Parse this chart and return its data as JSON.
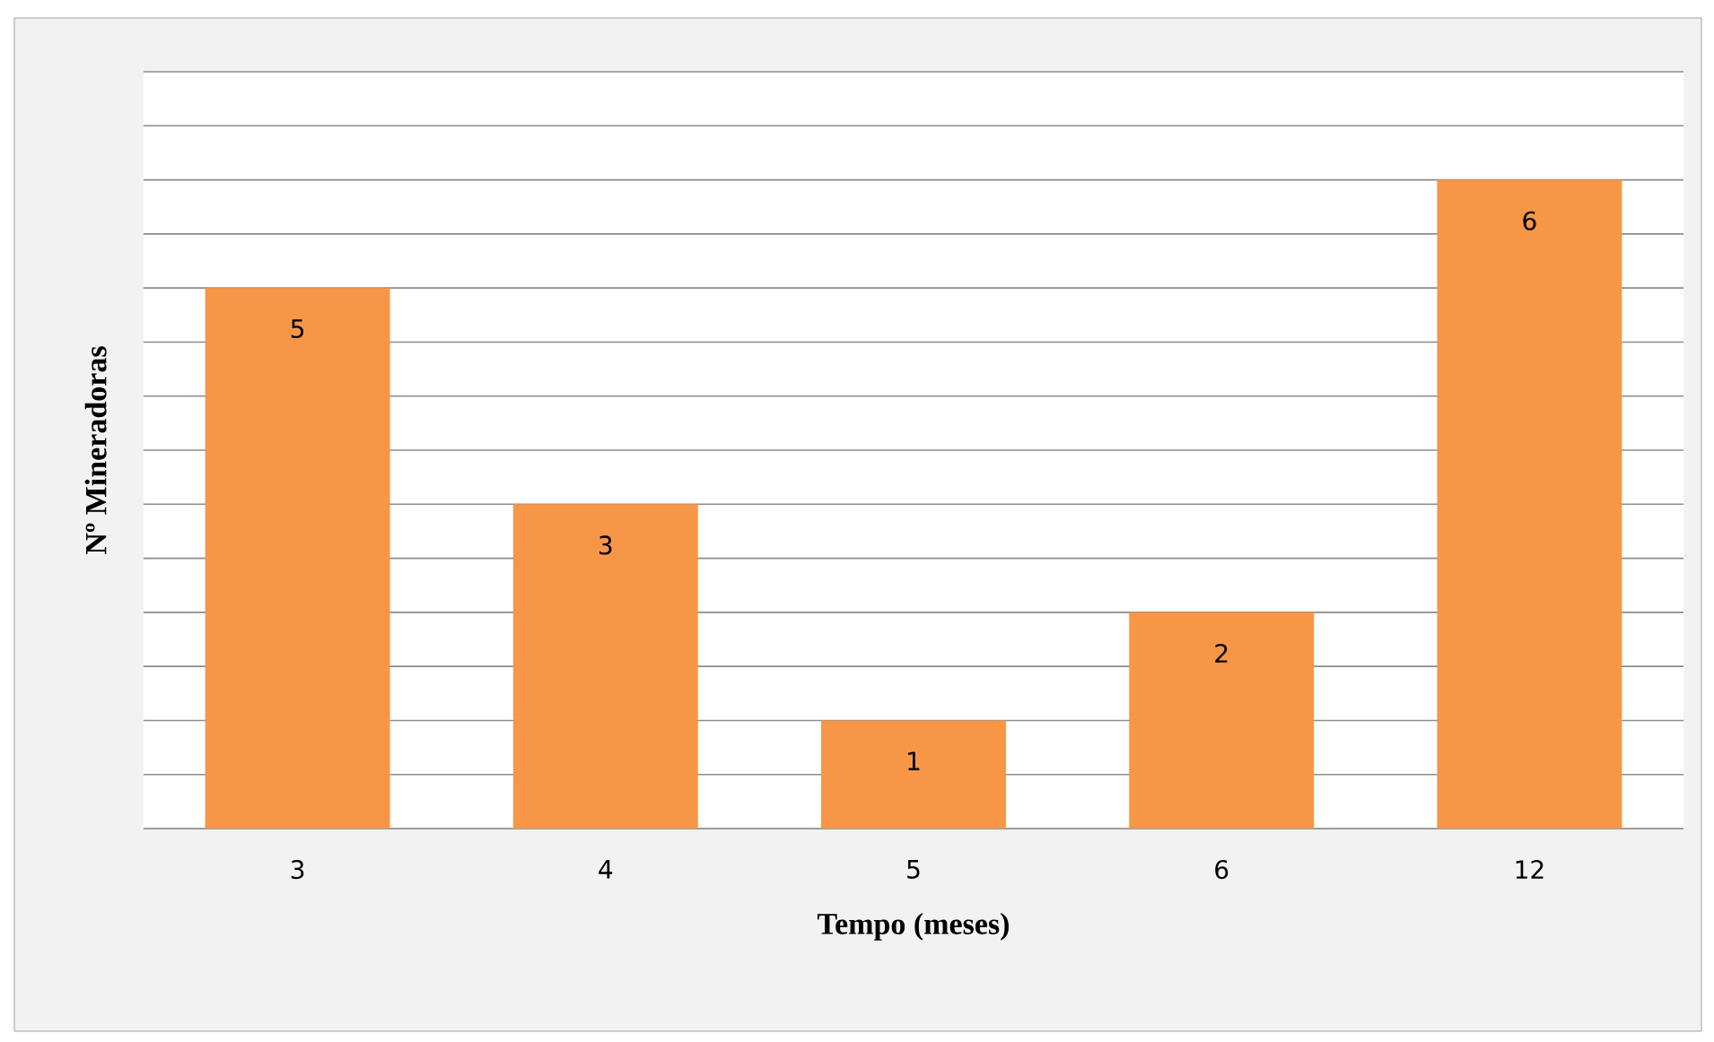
{
  "chart_data": {
    "type": "bar",
    "xlabel": "Tempo (meses)",
    "ylabel": "Nº Mineradoras",
    "categories": [
      "3",
      "4",
      "5",
      "6",
      "12"
    ],
    "values": [
      5,
      3,
      1,
      2,
      6
    ],
    "color": "#f79646",
    "ylim": [
      0,
      7
    ],
    "tick_labels": "x",
    "grid": "y",
    "data_labels": true
  }
}
